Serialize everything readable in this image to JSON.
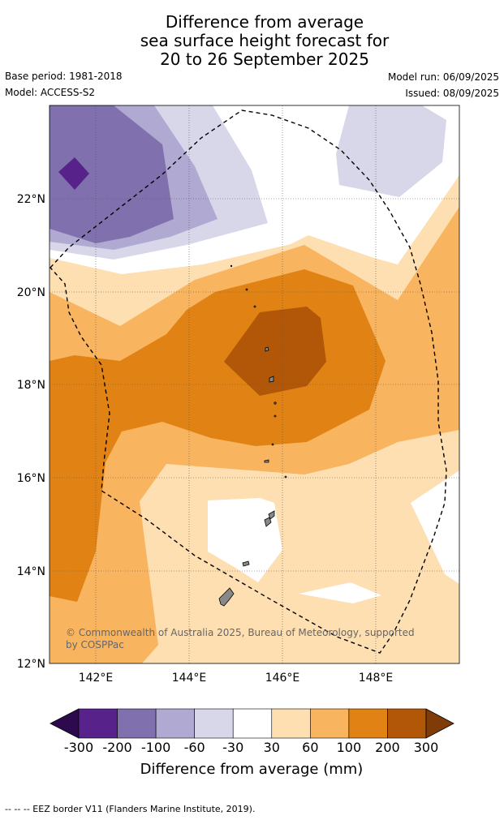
{
  "title": {
    "line1": "Difference from average",
    "line2": "sea surface height forecast for",
    "line3": "20 to 26 September 2025"
  },
  "meta": {
    "base_period": "Base period: 1981-2018",
    "model": "Model: ACCESS-S2",
    "model_run": "Model run: 06/09/2025",
    "issued": "Issued: 08/09/2025"
  },
  "map": {
    "lat_ticks": [
      "22°N",
      "20°N",
      "18°N",
      "16°N",
      "14°N",
      "12°N"
    ],
    "lon_ticks": [
      "142°E",
      "144°E",
      "146°E",
      "148°E"
    ],
    "copyright_line1": "© Commonwealth of Australia 2025, Bureau of Meteorology, supported",
    "copyright_line2": "by COSPPac"
  },
  "colorbar": {
    "labels": [
      "-300",
      "-200",
      "-100",
      "-60",
      "-30",
      "30",
      "60",
      "100",
      "200",
      "300"
    ],
    "colors": [
      "#2d0a4e",
      "#57238a",
      "#8070ad",
      "#b0a9d1",
      "#d8d7ea",
      "#ffffff",
      "#fddfb2",
      "#f9b45f",
      "#e08214",
      "#b25708",
      "#7f3b08"
    ],
    "title": "Difference from average (mm)"
  },
  "footer": "--  --  -- EEZ border V11 (Flanders Marine Institute, 2019)."
}
